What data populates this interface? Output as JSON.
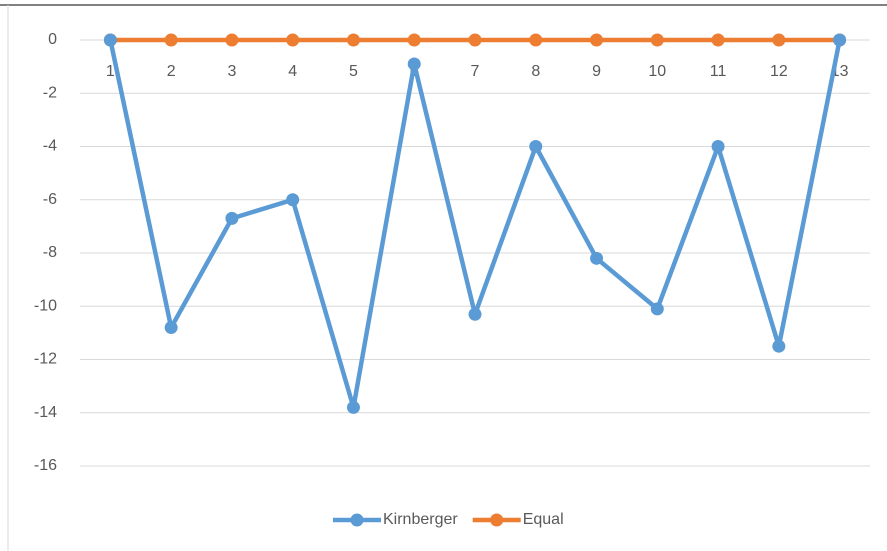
{
  "chart_data": {
    "type": "line",
    "categories": [
      "1",
      "2",
      "3",
      "4",
      "5",
      "6",
      "7",
      "8",
      "9",
      "10",
      "11",
      "12",
      "13"
    ],
    "series": [
      {
        "name": "Kirnberger",
        "color": "#5b9bd5",
        "values": [
          0,
          -10.8,
          -6.7,
          -6.0,
          -13.8,
          -0.9,
          -10.3,
          -4.0,
          -8.2,
          -10.1,
          -4.0,
          -11.5,
          0
        ]
      },
      {
        "name": "Equal",
        "color": "#ed7d31",
        "values": [
          0,
          0,
          0,
          0,
          0,
          0,
          0,
          0,
          0,
          0,
          0,
          0,
          0
        ]
      }
    ],
    "ylim": [
      -16,
      0
    ],
    "yticks": [
      0,
      -2,
      -4,
      -6,
      -8,
      -10,
      -12,
      -14,
      -16
    ],
    "grid": true,
    "legend": "bottom"
  }
}
